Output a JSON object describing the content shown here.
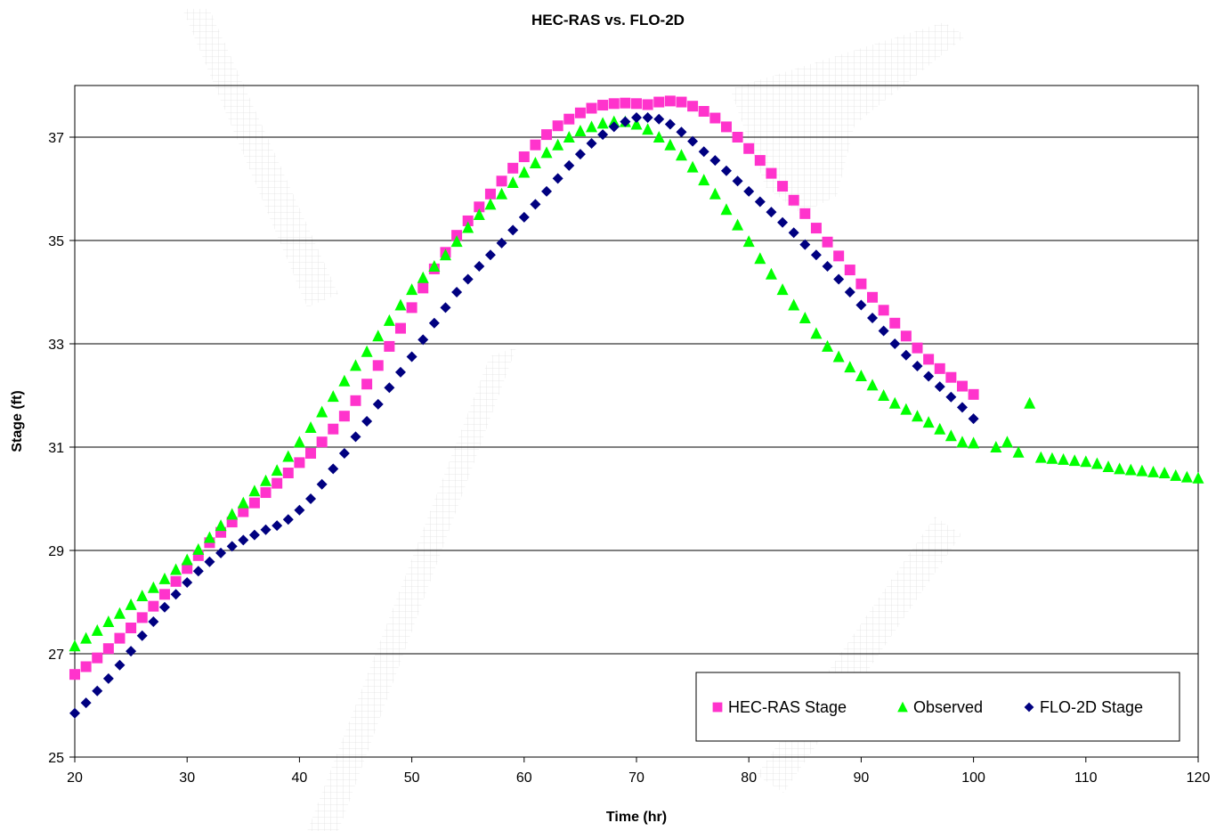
{
  "chart_data": {
    "type": "scatter",
    "title": "HEC-RAS vs. FLO-2D",
    "xlabel": "Time (hr)",
    "ylabel": "Stage (ft)",
    "xlim": [
      20,
      120
    ],
    "ylim": [
      25,
      38
    ],
    "xticks": [
      20,
      30,
      40,
      50,
      60,
      70,
      80,
      90,
      100,
      110,
      120
    ],
    "yticks": [
      25,
      27,
      29,
      31,
      33,
      35,
      37
    ],
    "grid": "horizontal",
    "legend_position": "bottom-right",
    "series": [
      {
        "name": "HEC-RAS Stage",
        "marker": "square",
        "color": "#ff33cc",
        "x": [
          20,
          21,
          22,
          23,
          24,
          25,
          26,
          27,
          28,
          29,
          30,
          31,
          32,
          33,
          34,
          35,
          36,
          37,
          38,
          39,
          40,
          41,
          42,
          43,
          44,
          45,
          46,
          47,
          48,
          49,
          50,
          51,
          52,
          53,
          54,
          55,
          56,
          57,
          58,
          59,
          60,
          61,
          62,
          63,
          64,
          65,
          66,
          67,
          68,
          69,
          70,
          71,
          72,
          73,
          74,
          75,
          76,
          77,
          78,
          79,
          80,
          81,
          82,
          83,
          84,
          85,
          86,
          87,
          88,
          89,
          90,
          91,
          92,
          93,
          94,
          95,
          96,
          97,
          98,
          99,
          100
        ],
        "y": [
          26.6,
          26.75,
          26.92,
          27.1,
          27.3,
          27.5,
          27.7,
          27.92,
          28.15,
          28.4,
          28.65,
          28.9,
          29.15,
          29.35,
          29.55,
          29.75,
          29.92,
          30.12,
          30.3,
          30.5,
          30.7,
          30.88,
          31.1,
          31.35,
          31.6,
          31.9,
          32.22,
          32.58,
          32.95,
          33.3,
          33.7,
          34.08,
          34.45,
          34.77,
          35.1,
          35.38,
          35.65,
          35.9,
          36.15,
          36.4,
          36.62,
          36.85,
          37.05,
          37.22,
          37.35,
          37.47,
          37.56,
          37.62,
          37.65,
          37.66,
          37.65,
          37.63,
          37.68,
          37.7,
          37.68,
          37.6,
          37.5,
          37.37,
          37.2,
          37.0,
          36.78,
          36.55,
          36.3,
          36.05,
          35.78,
          35.52,
          35.24,
          34.97,
          34.7,
          34.43,
          34.16,
          33.9,
          33.65,
          33.4,
          33.15,
          32.92,
          32.7,
          32.52,
          32.35,
          32.18,
          32.02
        ]
      },
      {
        "name": "Observed",
        "marker": "triangle",
        "color": "#00ff00",
        "x": [
          20,
          21,
          22,
          23,
          24,
          25,
          26,
          27,
          28,
          29,
          30,
          31,
          32,
          33,
          34,
          35,
          36,
          37,
          38,
          39,
          40,
          41,
          42,
          43,
          44,
          45,
          46,
          47,
          48,
          49,
          50,
          51,
          52,
          53,
          54,
          55,
          56,
          57,
          58,
          59,
          60,
          61,
          62,
          63,
          64,
          65,
          66,
          67,
          68,
          69,
          70,
          71,
          72,
          73,
          74,
          75,
          76,
          77,
          78,
          79,
          80,
          81,
          82,
          83,
          84,
          85,
          86,
          87,
          88,
          89,
          90,
          91,
          92,
          93,
          94,
          95,
          96,
          97,
          98,
          99,
          100,
          102,
          103,
          104,
          105,
          106,
          107,
          108,
          109,
          110,
          111,
          112,
          113,
          114,
          115,
          116,
          117,
          118,
          119,
          120
        ],
        "y": [
          27.15,
          27.3,
          27.45,
          27.62,
          27.78,
          27.95,
          28.12,
          28.28,
          28.45,
          28.63,
          28.82,
          29.02,
          29.25,
          29.48,
          29.7,
          29.92,
          30.15,
          30.35,
          30.55,
          30.82,
          31.1,
          31.38,
          31.68,
          31.98,
          32.28,
          32.58,
          32.85,
          33.15,
          33.45,
          33.75,
          34.05,
          34.28,
          34.5,
          34.72,
          34.98,
          35.25,
          35.5,
          35.7,
          35.9,
          36.12,
          36.32,
          36.5,
          36.7,
          36.85,
          37.0,
          37.12,
          37.2,
          37.27,
          37.3,
          37.3,
          37.25,
          37.15,
          37.0,
          36.85,
          36.65,
          36.42,
          36.17,
          35.9,
          35.6,
          35.3,
          34.98,
          34.65,
          34.35,
          34.05,
          33.75,
          33.5,
          33.2,
          32.95,
          32.75,
          32.55,
          32.38,
          32.2,
          32.0,
          31.85,
          31.73,
          31.6,
          31.48,
          31.35,
          31.22,
          31.1,
          31.08,
          31.0,
          31.1,
          30.9,
          31.85,
          30.8,
          30.78,
          30.76,
          30.74,
          30.72,
          30.68,
          30.62,
          30.58,
          30.56,
          30.54,
          30.52,
          30.5,
          30.45,
          30.42,
          30.4
        ]
      },
      {
        "name": "FLO-2D Stage",
        "marker": "diamond",
        "color": "#000080",
        "x": [
          20,
          21,
          22,
          23,
          24,
          25,
          26,
          27,
          28,
          29,
          30,
          31,
          32,
          33,
          34,
          35,
          36,
          37,
          38,
          39,
          40,
          41,
          42,
          43,
          44,
          45,
          46,
          47,
          48,
          49,
          50,
          51,
          52,
          53,
          54,
          55,
          56,
          57,
          58,
          59,
          60,
          61,
          62,
          63,
          64,
          65,
          66,
          67,
          68,
          69,
          70,
          71,
          72,
          73,
          74,
          75,
          76,
          77,
          78,
          79,
          80,
          81,
          82,
          83,
          84,
          85,
          86,
          87,
          88,
          89,
          90,
          91,
          92,
          93,
          94,
          95,
          96,
          97,
          98,
          99,
          100
        ],
        "y": [
          25.85,
          26.05,
          26.28,
          26.52,
          26.78,
          27.05,
          27.35,
          27.62,
          27.9,
          28.15,
          28.38,
          28.6,
          28.78,
          28.95,
          29.08,
          29.2,
          29.3,
          29.4,
          29.48,
          29.6,
          29.78,
          30.0,
          30.28,
          30.58,
          30.88,
          31.2,
          31.5,
          31.83,
          32.15,
          32.45,
          32.75,
          33.08,
          33.4,
          33.7,
          34.0,
          34.25,
          34.5,
          34.72,
          34.95,
          35.2,
          35.45,
          35.7,
          35.95,
          36.2,
          36.45,
          36.67,
          36.88,
          37.05,
          37.2,
          37.3,
          37.38,
          37.38,
          37.35,
          37.25,
          37.1,
          36.92,
          36.72,
          36.55,
          36.35,
          36.15,
          35.95,
          35.75,
          35.55,
          35.35,
          35.15,
          34.92,
          34.72,
          34.5,
          34.25,
          34.0,
          33.75,
          33.5,
          33.25,
          33.0,
          32.78,
          32.57,
          32.37,
          32.17,
          31.97,
          31.77,
          31.55
        ]
      }
    ]
  }
}
